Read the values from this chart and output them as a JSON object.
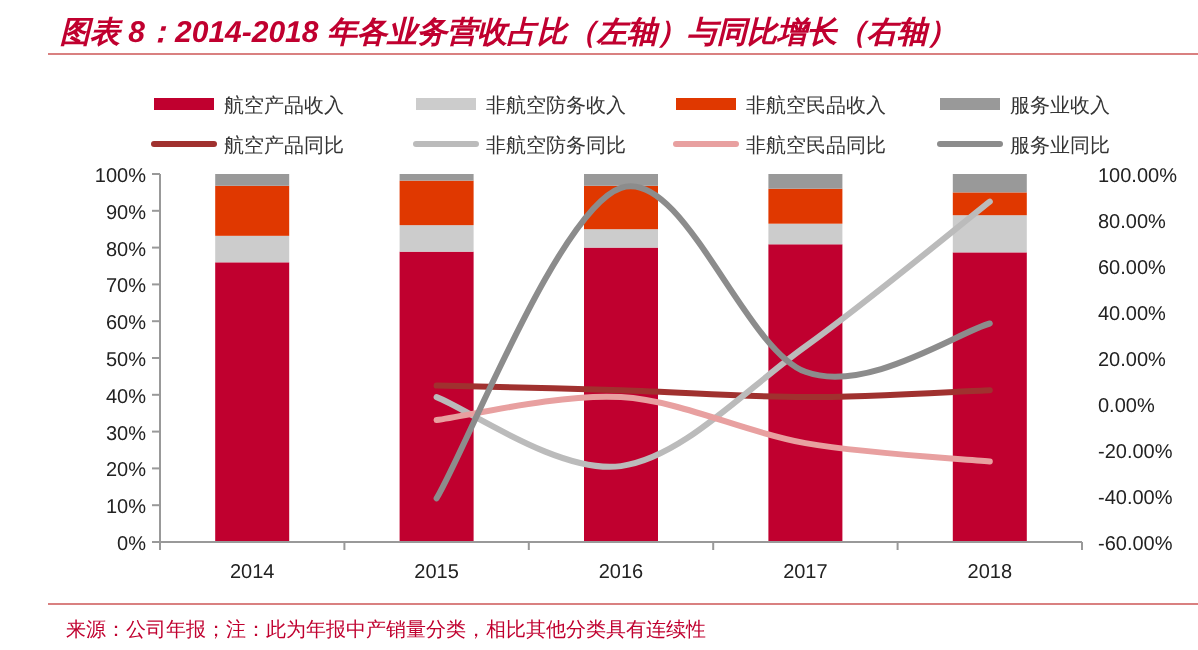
{
  "chart_data": {
    "type": "bar",
    "title": "图表 8：2014-2018 年各业务营收占比（左轴）与同比增长（右轴）",
    "stacked": true,
    "legend": "top",
    "categories": [
      "2014",
      "2015",
      "2016",
      "2017",
      "2018"
    ],
    "series": [
      {
        "name": "航空产品收入",
        "color": "#c0002f",
        "values": [
          76.0,
          78.9,
          80.0,
          80.9,
          78.7
        ]
      },
      {
        "name": "非航空防务收入",
        "color": "#cccccc",
        "values": [
          7.2,
          7.2,
          5.0,
          5.6,
          10.1
        ]
      },
      {
        "name": "非航空民品收入",
        "color": "#e03800",
        "values": [
          13.6,
          12.1,
          11.8,
          9.5,
          6.2
        ]
      },
      {
        "name": "服务业收入",
        "color": "#999999",
        "values": [
          3.2,
          1.8,
          3.2,
          4.0,
          5.0
        ]
      },
      {
        "name": "航空产品同比",
        "type": "line",
        "axis": "y2",
        "color": "#a0312f",
        "values": [
          null,
          8,
          6,
          3,
          6
        ]
      },
      {
        "name": "非航空防务同比",
        "type": "line",
        "axis": "y2",
        "color": "#bbbbbb",
        "values": [
          null,
          3,
          -27,
          25,
          88
        ]
      },
      {
        "name": "非航空民品同比",
        "type": "line",
        "axis": "y2",
        "color": "#e8a0a0",
        "values": [
          null,
          -7,
          3,
          -17,
          -25
        ]
      },
      {
        "name": "服务业同比",
        "type": "line",
        "axis": "y2",
        "color": "#8c8c8c",
        "values": [
          null,
          -41,
          94,
          14,
          35
        ]
      }
    ],
    "ylim": [
      0,
      100
    ],
    "yticks": [
      {
        "value": 0,
        "label": "0%"
      },
      {
        "value": 10,
        "label": "10%"
      },
      {
        "value": 20,
        "label": "20%"
      },
      {
        "value": 30,
        "label": "30%"
      },
      {
        "value": 40,
        "label": "40%"
      },
      {
        "value": 50,
        "label": "50%"
      },
      {
        "value": 60,
        "label": "60%"
      },
      {
        "value": 70,
        "label": "70%"
      },
      {
        "value": 80,
        "label": "80%"
      },
      {
        "value": 90,
        "label": "90%"
      },
      {
        "value": 100,
        "label": "100%"
      }
    ],
    "y2lim": [
      -60,
      100
    ],
    "y2ticks": [
      {
        "value": -60,
        "label": "-60.00%"
      },
      {
        "value": -40,
        "label": "-40.00%"
      },
      {
        "value": -20,
        "label": "-20.00%"
      },
      {
        "value": 0,
        "label": "0.00%"
      },
      {
        "value": 20,
        "label": "20.00%"
      },
      {
        "value": 40,
        "label": "40.00%"
      },
      {
        "value": 60,
        "label": "60.00%"
      },
      {
        "value": 80,
        "label": "80.00%"
      },
      {
        "value": 100,
        "label": "100.00%"
      }
    ],
    "annotations": [
      "来源：公司年报；注：此为年报中产销量分类，相比其他分类具有连续性"
    ]
  }
}
